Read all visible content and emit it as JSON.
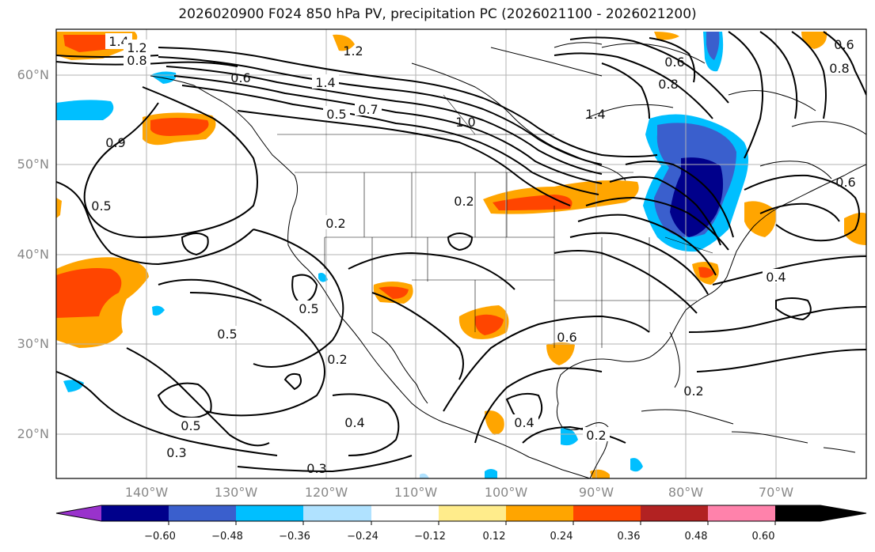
{
  "title": "2026020900 F024 850 hPa PV, precipitation PC (2026021100 - 2026021200)",
  "map": {
    "latitude_labels": [
      "60°N",
      "50°N",
      "40°N",
      "30°N",
      "20°N"
    ],
    "longitude_labels": [
      "140°W",
      "130°W",
      "120°W",
      "110°W",
      "100°W",
      "90°W",
      "80°W",
      "70°W"
    ],
    "contour_labels": [
      "1.4",
      "1.2",
      "0.8",
      "1.2",
      "0.6",
      "1.4",
      "0.5",
      "0.7",
      "1.0",
      "1.4",
      "0.6",
      "0.8",
      "0.6",
      "0.8",
      "0.6",
      "0.9",
      "0.5",
      "0.2",
      "0.2",
      "0.5",
      "0.5",
      "0.2",
      "0.4",
      "0.5",
      "0.3",
      "0.3",
      "0.4",
      "0.2",
      "0.2",
      "0.4",
      "0.6"
    ]
  },
  "colorbar": {
    "tick_labels": [
      "−0.60",
      "−0.48",
      "−0.36",
      "−0.24",
      "−0.12",
      "0.12",
      "0.24",
      "0.36",
      "0.48",
      "0.60"
    ],
    "colors": [
      "#9932cc",
      "#00008b",
      "#3a5fcd",
      "#00bfff",
      "#b0e2ff",
      "#ffffff",
      "#ffec8b",
      "#ffa500",
      "#ff4500",
      "#b22222",
      "#ff82ab"
    ]
  }
}
